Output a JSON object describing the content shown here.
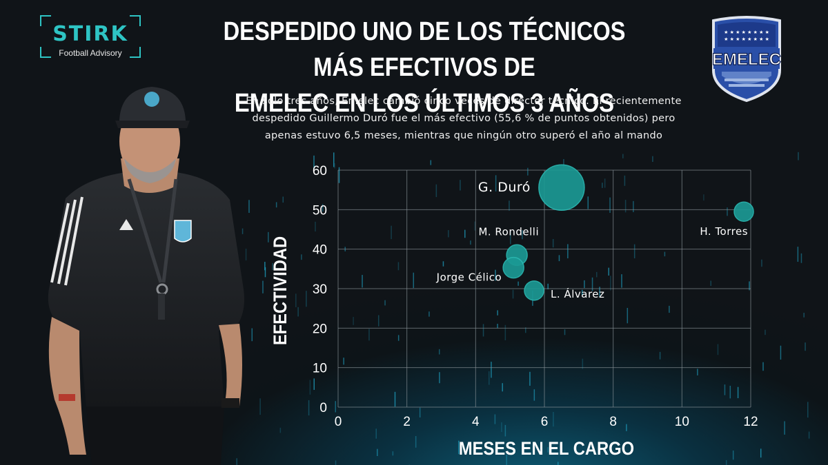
{
  "logo": {
    "name": "STIRK",
    "tagline": "Football Advisory"
  },
  "title_lines": [
    "DESPEDIDO UNO DE LOS TÉCNICOS MÁS EFECTIVOS DE",
    "EMELEC EN LOS ÚLTIMOS 3 AÑOS"
  ],
  "subtitle_lines": [
    "En solo tres años, Emelec cambió cinco veces de director técnico. El recientemente",
    "despedido Guillermo Duró fue el más efectivo (55,6 % de puntos obtenidos) pero",
    "apenas estuvo 6,5 meses, mientras que ningún otro superó el año al mando"
  ],
  "crest": {
    "name": "emelec-crest",
    "text": "EMELEC"
  },
  "colors": {
    "bubble": "#1b9994",
    "bubble_edge": "#2bb8b2",
    "grid": "#8a9499",
    "accent": "#2ec4c4"
  },
  "chart_data": {
    "type": "scatter",
    "xlabel": "MESES EN EL CARGO",
    "ylabel": "EFECTIVIDAD",
    "xlim": [
      0,
      12
    ],
    "ylim": [
      0,
      60
    ],
    "xticks": [
      0,
      2,
      4,
      6,
      8,
      10,
      12
    ],
    "yticks": [
      0,
      10,
      20,
      30,
      40,
      50,
      60
    ],
    "grid": true,
    "points": [
      {
        "label": "G. Duró",
        "x": 6.5,
        "y": 55.6,
        "size": 33,
        "label_side": "left-strong"
      },
      {
        "label": "H. Torres",
        "x": 11.8,
        "y": 49.5,
        "size": 14,
        "label_side": "below-left"
      },
      {
        "label": "M. Rondelli",
        "x": 5.2,
        "y": 38.5,
        "size": 15,
        "label_side": "above-left"
      },
      {
        "label": "Jorge Célico",
        "x": 5.1,
        "y": 35.3,
        "size": 15,
        "label_side": "below-left"
      },
      {
        "label": "L.  Álvarez",
        "x": 5.7,
        "y": 29.5,
        "size": 14,
        "label_side": "right"
      }
    ]
  }
}
